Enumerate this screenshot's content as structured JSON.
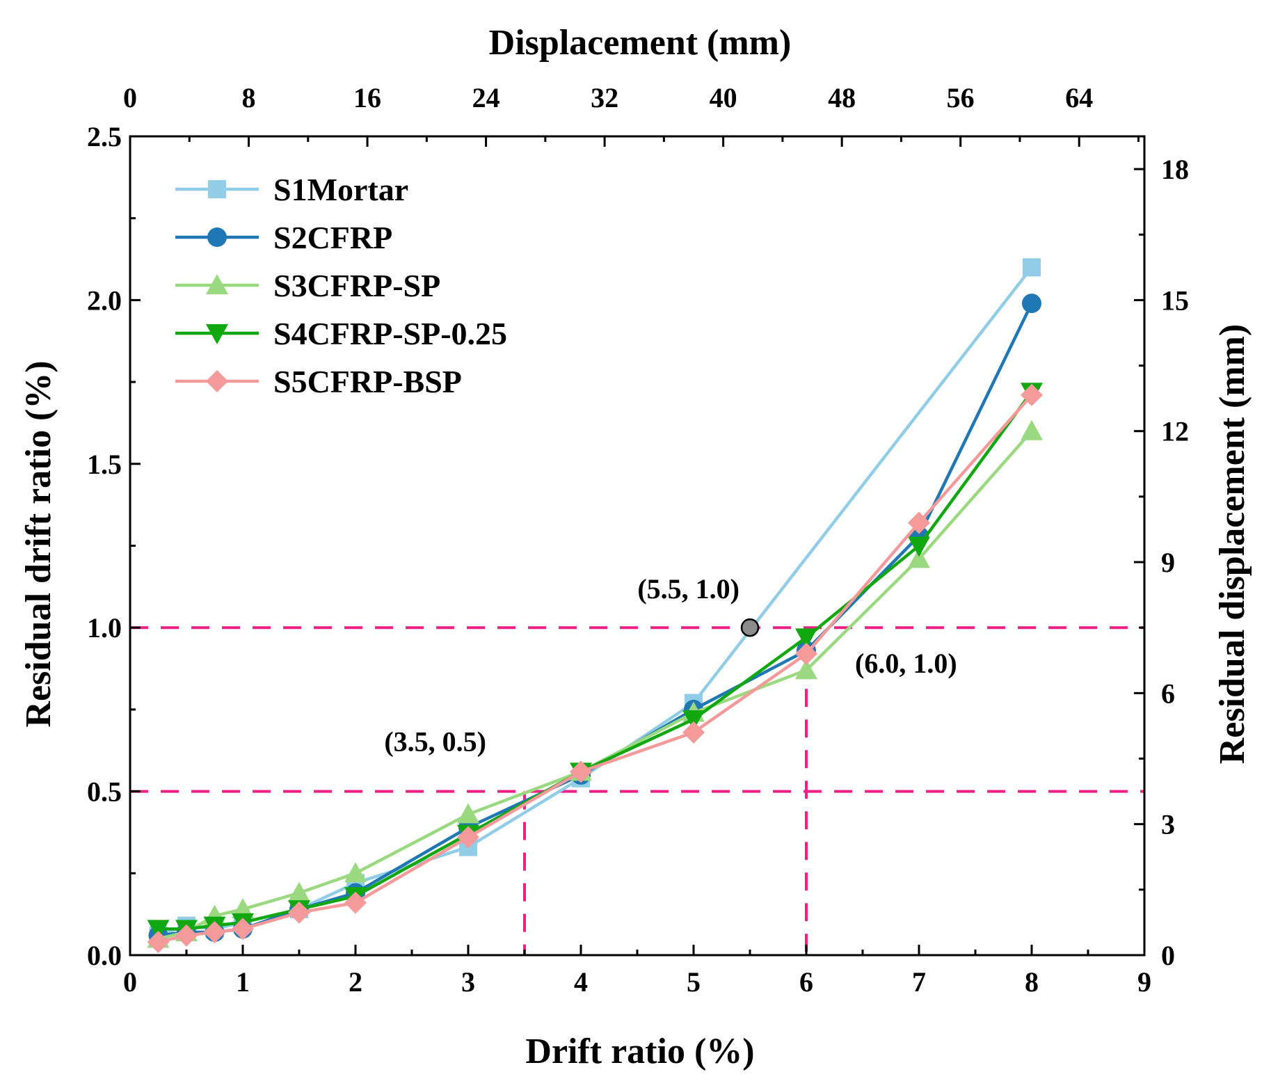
{
  "chart_data": {
    "type": "line",
    "title": "",
    "xlabel": "Drift ratio (%)",
    "ylabel": "Residual drift ratio (%)",
    "x2label": "Displacement (mm)",
    "y2label": "Residual displacement (mm)",
    "xlim": [
      0,
      9
    ],
    "ylim": [
      0,
      2.5
    ],
    "x2lim": [
      0,
      68.4
    ],
    "y2lim": [
      0,
      18.75
    ],
    "x_ticks": [
      "0",
      "1",
      "2",
      "3",
      "4",
      "5",
      "6",
      "7",
      "8",
      "9"
    ],
    "y_ticks": [
      "0.0",
      "0.5",
      "1.0",
      "1.5",
      "2.0",
      "2.5"
    ],
    "x2_ticks": [
      "0",
      "8",
      "16",
      "24",
      "32",
      "40",
      "48",
      "56",
      "64"
    ],
    "y2_ticks": [
      "0",
      "3",
      "6",
      "9",
      "12",
      "15",
      "18"
    ],
    "legend_position": "top-left",
    "series": [
      {
        "name": "S1Mortar",
        "color": "#92cde8",
        "marker": "square",
        "x": [
          0.25,
          0.5,
          0.75,
          1,
          1.5,
          2,
          3,
          4,
          5,
          8
        ],
        "y": [
          0.06,
          0.09,
          0.08,
          0.1,
          0.14,
          0.22,
          0.33,
          0.54,
          0.77,
          2.1
        ]
      },
      {
        "name": "S2CFRP",
        "color": "#1f77b4",
        "marker": "circle",
        "x": [
          0.25,
          0.5,
          0.75,
          1,
          1.5,
          2,
          3,
          4,
          5,
          6,
          7,
          8
        ],
        "y": [
          0.06,
          0.07,
          0.07,
          0.08,
          0.14,
          0.19,
          0.39,
          0.55,
          0.75,
          0.93,
          1.28,
          1.99
        ]
      },
      {
        "name": "S3CFRP-SP",
        "color": "#9ad97f",
        "marker": "triangle-up",
        "x": [
          0.25,
          0.5,
          0.75,
          1,
          1.5,
          2,
          3,
          4,
          5,
          6,
          7,
          8
        ],
        "y": [
          0.05,
          0.07,
          0.12,
          0.14,
          0.19,
          0.25,
          0.43,
          0.56,
          0.74,
          0.87,
          1.21,
          1.6
        ]
      },
      {
        "name": "S4CFRP-SP-0.25",
        "color": "#11a711",
        "marker": "triangle-down",
        "x": [
          0.25,
          0.5,
          0.75,
          1,
          1.5,
          2,
          3,
          4,
          5,
          6,
          7,
          8
        ],
        "y": [
          0.08,
          0.08,
          0.09,
          0.1,
          0.14,
          0.18,
          0.37,
          0.56,
          0.72,
          0.97,
          1.25,
          1.72
        ]
      },
      {
        "name": "S5CFRP-BSP",
        "color": "#f49a9a",
        "marker": "diamond",
        "x": [
          0.25,
          0.5,
          0.75,
          1,
          1.5,
          2,
          3,
          4,
          5,
          6,
          7,
          8
        ],
        "y": [
          0.04,
          0.06,
          0.07,
          0.08,
          0.13,
          0.16,
          0.36,
          0.56,
          0.68,
          0.92,
          1.32,
          1.71
        ]
      }
    ],
    "reference_lines": {
      "color": "#ee1f85",
      "horizontal_y": [
        0.5,
        1.0
      ],
      "vertical": [
        {
          "x": 3.5,
          "y": 0.5
        },
        {
          "x": 6.0,
          "y": 1.0
        }
      ]
    },
    "highlight_point": {
      "x": 5.5,
      "y": 1.0,
      "color": "#8c8c8c"
    },
    "annotations": [
      {
        "text": "(3.5, 0.5)",
        "x": 3.5,
        "y": 0.5
      },
      {
        "text": "(5.5, 1.0)",
        "x": 5.5,
        "y": 1.0
      },
      {
        "text": "(6.0, 1.0)",
        "x": 6.0,
        "y": 1.0
      }
    ]
  }
}
